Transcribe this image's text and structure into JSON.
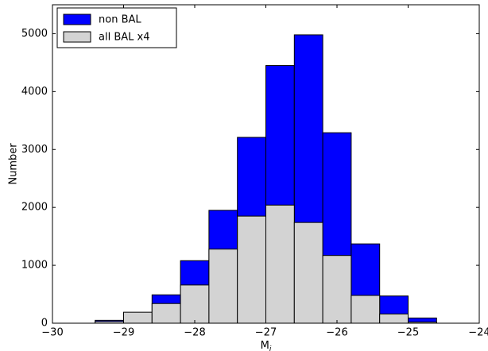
{
  "chart_data": {
    "type": "histogram",
    "xlabel": {
      "text": "M",
      "subscript": "i"
    },
    "ylabel": "Number",
    "bins": [
      -29.4,
      -29.0,
      -28.6,
      -28.2,
      -27.8,
      -27.4,
      -27.0,
      -26.6,
      -26.2,
      -25.8,
      -25.4,
      -25.0,
      -24.6
    ],
    "series": [
      {
        "name": "non BAL",
        "color": "#0000ff",
        "values": [
          50,
          180,
          490,
          1080,
          1950,
          3210,
          4450,
          4980,
          3290,
          1370,
          470,
          90
        ]
      },
      {
        "name": "all BAL x4",
        "color": "#d3d3d3",
        "values": [
          30,
          190,
          340,
          660,
          1280,
          1850,
          2040,
          1740,
          1170,
          480,
          160,
          20
        ]
      }
    ],
    "xlim": [
      -30,
      -24
    ],
    "ylim": [
      0,
      5500
    ],
    "xticks": [
      {
        "value": -30,
        "label": "−30"
      },
      {
        "value": -29,
        "label": "−29"
      },
      {
        "value": -28,
        "label": "−28"
      },
      {
        "value": -27,
        "label": "−27"
      },
      {
        "value": -26,
        "label": "−26"
      },
      {
        "value": -25,
        "label": "−25"
      },
      {
        "value": -24,
        "label": "−24"
      }
    ],
    "yticks": [
      0,
      1000,
      2000,
      3000,
      4000,
      5000
    ],
    "legend": "upper left"
  }
}
